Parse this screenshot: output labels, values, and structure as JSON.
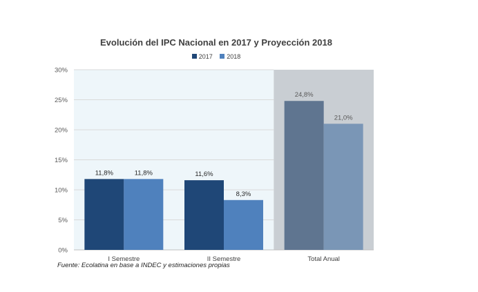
{
  "chart_data": {
    "type": "bar",
    "title": "Evolución del IPC Nacional en 2017 y Proyección 2018",
    "categories": [
      "I Semestre",
      "II Semestre",
      "Total Anual"
    ],
    "series": [
      {
        "name": "2017",
        "values": [
          11.8,
          11.6,
          24.8
        ],
        "labels": [
          "11,8%",
          "11,6%",
          "24,8%"
        ]
      },
      {
        "name": "2018",
        "values": [
          11.8,
          8.3,
          21.0
        ],
        "labels": [
          "11,8%",
          "8,3%",
          "21,0%"
        ]
      }
    ],
    "y_ticks": [
      "0%",
      "5%",
      "10%",
      "15%",
      "20%",
      "25%",
      "30%"
    ],
    "ylim": [
      0,
      30
    ],
    "grid": true,
    "legend_position": "top",
    "highlighted_category": "Total Anual",
    "colors": {
      "series_2017": "#1f4777",
      "series_2018": "#4f81bd",
      "series_2017_highlight": "#5f7590",
      "series_2018_highlight": "#7a96b6",
      "plot_background": "#eef6fa",
      "highlight_background": "#c9ced3",
      "gridline": "#d9d9d9"
    }
  },
  "source": "Fuente: Ecolatina en base a INDEC y estimaciones propias"
}
